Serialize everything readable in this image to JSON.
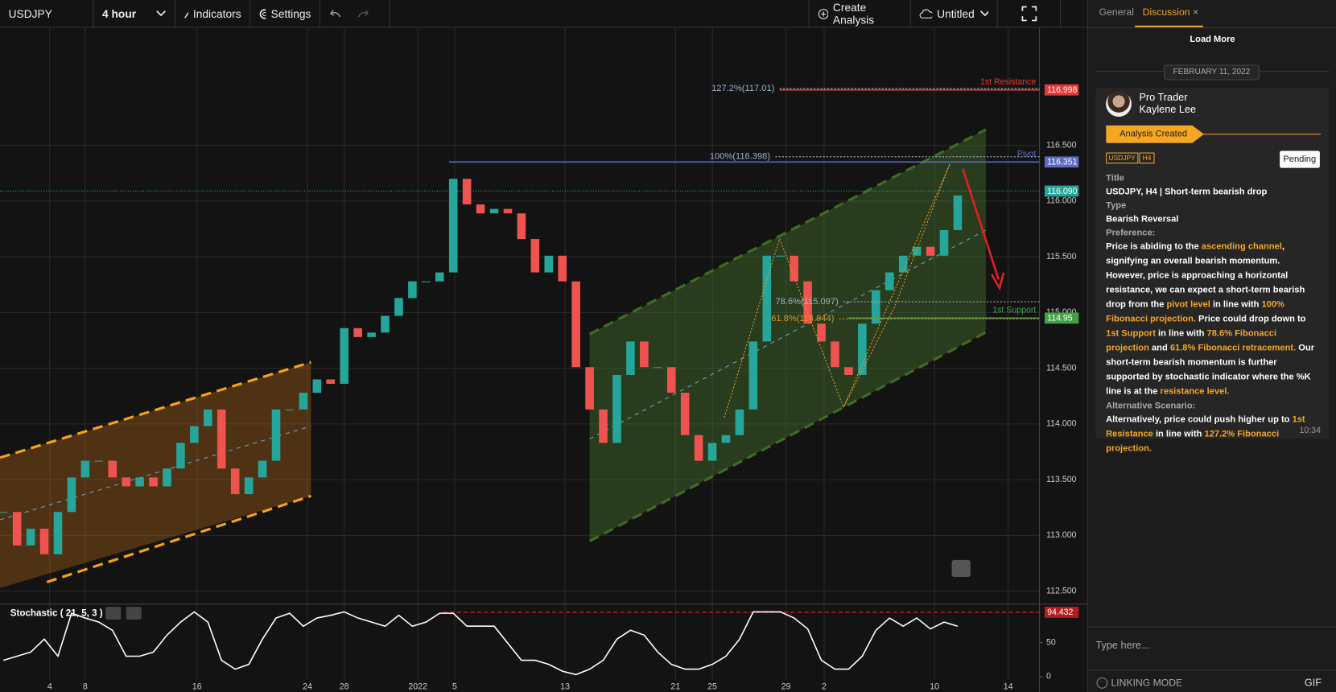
{
  "toolbar": {
    "symbol": "USDJPY",
    "interval": "4 hour",
    "indicators": "Indicators",
    "settings": "Settings",
    "create": "Create Analysis",
    "file": "Untitled"
  },
  "chart_data": {
    "type": "candlestick",
    "values": [
      113.21,
      112.91,
      113.06,
      112.83,
      113.21,
      113.52,
      113.67,
      113.67,
      113.52,
      113.44,
      113.52,
      113.44,
      113.6,
      113.83,
      113.98,
      114.13,
      113.6,
      113.37,
      113.52,
      113.67,
      114.13,
      114.13,
      114.28,
      114.4,
      114.36,
      114.86,
      114.78,
      114.82,
      114.97,
      115.13,
      115.28,
      115.28,
      115.36,
      116.2,
      115.97,
      115.89,
      115.93,
      115.89,
      115.66,
      115.36,
      115.51,
      115.28,
      114.51,
      114.13,
      113.83,
      114.44,
      114.74,
      114.51,
      114.51,
      114.28,
      113.9,
      113.67,
      113.83,
      113.9,
      114.13,
      114.74,
      115.51,
      115.51,
      115.28,
      114.9,
      114.74,
      114.51,
      114.44,
      114.9,
      115.2,
      115.36,
      115.51,
      115.59,
      115.51,
      115.74,
      116.05
    ],
    "up_color": "#26a69a",
    "down_color": "#ef5350",
    "xlim": [
      -0.25,
      76
    ],
    "ylim": [
      112.39,
      117.56
    ],
    "yticks": [
      {
        "value": 112.5,
        "label": "112.500"
      },
      {
        "value": 113,
        "label": "113.000"
      },
      {
        "value": 113.5,
        "label": "113.500"
      },
      {
        "value": 114,
        "label": "114.000"
      },
      {
        "value": 114.5,
        "label": "114.500"
      },
      {
        "value": 115,
        "label": "115.000"
      },
      {
        "value": 115.5,
        "label": "115.500"
      },
      {
        "value": 116,
        "label": "116.000"
      },
      {
        "value": 116.5,
        "label": "116.500"
      }
    ],
    "xticks": [
      {
        "value": 3.4,
        "label": "4"
      },
      {
        "value": 6,
        "label": "8"
      },
      {
        "value": 14.2,
        "label": "16"
      },
      {
        "value": 22.3,
        "label": "24"
      },
      {
        "value": 25,
        "label": "28"
      },
      {
        "value": 30.4,
        "label": "2022"
      },
      {
        "value": 33.1,
        "label": "5"
      },
      {
        "value": 41.2,
        "label": "13"
      },
      {
        "value": 49.3,
        "label": "21"
      },
      {
        "value": 52,
        "label": "25"
      },
      {
        "value": 57.4,
        "label": "29"
      },
      {
        "value": 60.2,
        "label": "2"
      },
      {
        "value": 68.3,
        "label": "10"
      },
      {
        "value": 73.7,
        "label": "14"
      }
    ],
    "grid": true,
    "levels": [
      {
        "name": "1st Resistance",
        "value": 116.998,
        "color": "#e53935"
      },
      {
        "name": "Pivot",
        "value": 116.351,
        "color": "#5c6bc0"
      },
      {
        "value": 116.09,
        "label": "116.090",
        "color": "#26a69a"
      },
      {
        "name": "1st Support",
        "value": 114.95,
        "color": "#43a047"
      }
    ],
    "annotations": [
      {
        "label": "127.2%(117.01)",
        "value": 117.01,
        "color": "#9fb3c8"
      },
      {
        "label": "100%(116.398)",
        "value": 116.398,
        "color": "#9fb3c8"
      },
      {
        "label": "78.6%(115.097)",
        "value": 115.097,
        "color": "#9fb3c8"
      },
      {
        "label": "61.8%(114.944)",
        "value": 114.944,
        "color": "#d9932b"
      }
    ]
  },
  "indicator": {
    "title": "Stochastic ( 21, 5, 3 )",
    "values": [
      24,
      30,
      36,
      55,
      30,
      93,
      86,
      80,
      68,
      30,
      30,
      36,
      61,
      80,
      95,
      80,
      24,
      11,
      18,
      55,
      86,
      93,
      74,
      86,
      90,
      95,
      86,
      80,
      74,
      90,
      74,
      80,
      93,
      93,
      74,
      74,
      74,
      49,
      24,
      24,
      18,
      8,
      3,
      11,
      24,
      55,
      68,
      61,
      36,
      18,
      11,
      11,
      18,
      30,
      55,
      95,
      95,
      95,
      86,
      70,
      24,
      11,
      11,
      30,
      68,
      86,
      74,
      86,
      70,
      80,
      74
    ],
    "color": "#ffffff",
    "ylim": [
      0,
      100
    ],
    "yticks": [
      0,
      50
    ],
    "level": 94.432,
    "level_color": "#b71c1c"
  },
  "sidebar": {
    "tabs": [
      "General",
      "Discussion"
    ],
    "load_more": "Load More",
    "date": "FEBRUARY 11, 2022",
    "post": {
      "role": "Pro Trader",
      "author": "Kaylene Lee",
      "event": "Analysis Created",
      "tags": [
        "USDJPY",
        "H4"
      ],
      "status": "Pending",
      "title_label": "Title",
      "title": "USDJPY, H4 | Short-term bearish drop",
      "type_label": "Type",
      "type": "Bearish Reversal",
      "preference_label": "Preference:",
      "preference": [
        {
          "text": "Price is abiding to the ",
          "highlight": false
        },
        {
          "text": "ascending channel",
          "highlight": true
        },
        {
          "text": ", signifying an overall bearish momentum. However, price is approaching a horizontal resistance, we can expect a short-term bearish drop  from the ",
          "highlight": false
        },
        {
          "text": "pivot level",
          "highlight": true
        },
        {
          "text": " in line with ",
          "highlight": false
        },
        {
          "text": "100% Fibonacci projection.",
          "highlight": true
        },
        {
          "text": " Price could drop down to ",
          "highlight": false
        },
        {
          "text": "1st Support",
          "highlight": true
        },
        {
          "text": " in line with ",
          "highlight": false
        },
        {
          "text": "78.6% Fibonacci projection",
          "highlight": true
        },
        {
          "text": " and ",
          "highlight": false
        },
        {
          "text": "61.8% Fibonacci retracement.",
          "highlight": true
        },
        {
          "text": " Our short-term bearish momentum is further supported by stochastic indicator where the %K line is at the ",
          "highlight": false
        },
        {
          "text": "resistance level.",
          "highlight": true
        }
      ],
      "alternative_label": "Alternative Scenario:",
      "alternative": [
        {
          "text": "Alternatively, price could push higher up to ",
          "highlight": false
        },
        {
          "text": "1st Resistance",
          "highlight": true
        },
        {
          "text": " in line with ",
          "highlight": false
        },
        {
          "text": "127.2% Fibonacci projection.",
          "highlight": true
        }
      ],
      "time": "10:34"
    },
    "input_placeholder": "Type here...",
    "linking_mode": "LINKING MODE",
    "gif": "GIF"
  }
}
